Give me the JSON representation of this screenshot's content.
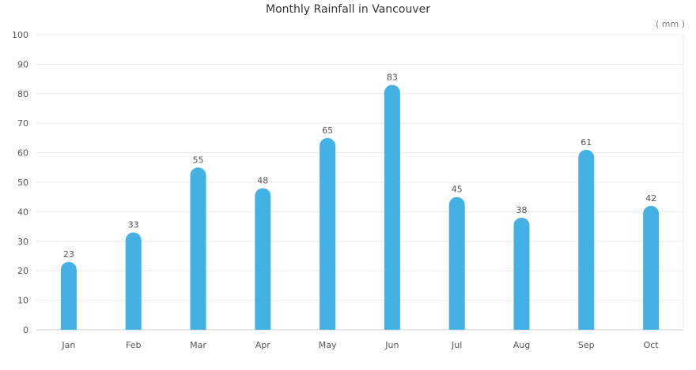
{
  "chart_data": {
    "type": "bar",
    "title": "Monthly Rainfall in Vancouver",
    "unit_label": "( mm )",
    "categories": [
      "Jan",
      "Feb",
      "Mar",
      "Apr",
      "May",
      "Jun",
      "Jul",
      "Aug",
      "Sep",
      "Oct"
    ],
    "values": [
      23,
      33,
      55,
      48,
      65,
      83,
      45,
      38,
      61,
      42
    ],
    "ylim": [
      0,
      100
    ],
    "yticks": [
      0,
      10,
      20,
      30,
      40,
      50,
      60,
      70,
      80,
      90,
      100
    ],
    "grid": true,
    "bar_color": "#44b1e5",
    "grid_color": "#ececec"
  }
}
